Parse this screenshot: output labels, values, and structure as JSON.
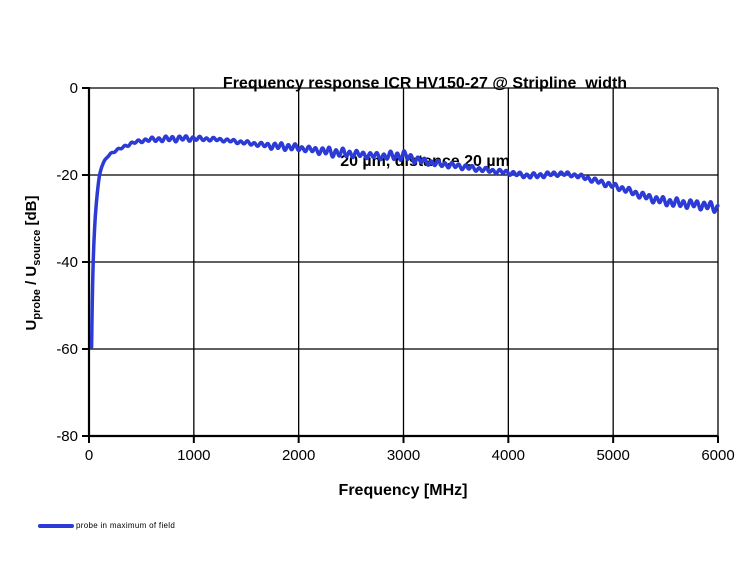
{
  "chart_data": {
    "type": "line",
    "title_line1": "Frequency response ICR HV150-27 @ Stripline  width",
    "title_line2": "20 µm, distance 20 µm",
    "xlabel": "Frequency [MHz]",
    "ylabel_parts": {
      "u1": "U",
      "sub1": "probe",
      "mid": " / U",
      "sub2": "source",
      "unit": " [dB]"
    },
    "xlim": [
      0,
      6000
    ],
    "ylim": [
      -80,
      0
    ],
    "x_ticks": [
      {
        "value": 0,
        "label": "0"
      },
      {
        "value": 1000,
        "label": "1000"
      },
      {
        "value": 2000,
        "label": "2000"
      },
      {
        "value": 3000,
        "label": "3000"
      },
      {
        "value": 4000,
        "label": "4000"
      },
      {
        "value": 5000,
        "label": "5000"
      },
      {
        "value": 6000,
        "label": "6000"
      }
    ],
    "y_ticks": [
      {
        "value": 0,
        "label": "0"
      },
      {
        "value": -20,
        "label": "-20"
      },
      {
        "value": -40,
        "label": "-40"
      },
      {
        "value": -60,
        "label": "-60"
      },
      {
        "value": -80,
        "label": "-80"
      }
    ],
    "grid": true,
    "legend_position": "bottom-left",
    "axis_color": "#000000",
    "grid_color": "#000000",
    "series": [
      {
        "name": "probe in maximum of field",
        "color": "#2c3ad6",
        "trend_points_mhz_db": [
          [
            25,
            -59.5
          ],
          [
            28,
            -54
          ],
          [
            32,
            -48
          ],
          [
            36,
            -43.5
          ],
          [
            40,
            -40
          ],
          [
            45,
            -36.5
          ],
          [
            50,
            -33.8
          ],
          [
            55,
            -31.6
          ],
          [
            60,
            -29.5
          ],
          [
            70,
            -26.5
          ],
          [
            80,
            -24
          ],
          [
            90,
            -21.8
          ],
          [
            100,
            -20.1
          ],
          [
            110,
            -19.0
          ],
          [
            120,
            -18.2
          ],
          [
            135,
            -17.4
          ],
          [
            150,
            -16.7
          ],
          [
            175,
            -15.8
          ],
          [
            200,
            -15.2
          ],
          [
            225,
            -14.8
          ],
          [
            250,
            -14.5
          ],
          [
            275,
            -14.2
          ],
          [
            300,
            -13.9
          ],
          [
            350,
            -13.3
          ],
          [
            400,
            -12.8
          ],
          [
            450,
            -12.4
          ],
          [
            500,
            -12.15
          ],
          [
            550,
            -11.95
          ],
          [
            600,
            -11.85
          ],
          [
            700,
            -11.75
          ],
          [
            800,
            -11.65
          ],
          [
            900,
            -11.6
          ],
          [
            1000,
            -11.6
          ],
          [
            1100,
            -11.7
          ],
          [
            1200,
            -11.8
          ],
          [
            1300,
            -12.0
          ],
          [
            1400,
            -12.3
          ],
          [
            1500,
            -12.6
          ],
          [
            1600,
            -12.9
          ],
          [
            1700,
            -13.2
          ],
          [
            1800,
            -13.4
          ],
          [
            1900,
            -13.5
          ],
          [
            2000,
            -13.8
          ],
          [
            2100,
            -14.1
          ],
          [
            2200,
            -14.4
          ],
          [
            2300,
            -14.7
          ],
          [
            2400,
            -14.9
          ],
          [
            2500,
            -15.1
          ],
          [
            2600,
            -15.3
          ],
          [
            2700,
            -15.5
          ],
          [
            2800,
            -15.7
          ],
          [
            2900,
            -15.6
          ],
          [
            3000,
            -15.5
          ],
          [
            3100,
            -16.3
          ],
          [
            3200,
            -16.9
          ],
          [
            3300,
            -17.3
          ],
          [
            3400,
            -17.6
          ],
          [
            3500,
            -17.9
          ],
          [
            3600,
            -18.2
          ],
          [
            3700,
            -18.6
          ],
          [
            3800,
            -18.9
          ],
          [
            3900,
            -19.2
          ],
          [
            4000,
            -19.4
          ],
          [
            4100,
            -19.9
          ],
          [
            4200,
            -20.2
          ],
          [
            4300,
            -20.1
          ],
          [
            4400,
            -19.8
          ],
          [
            4500,
            -19.7
          ],
          [
            4600,
            -19.9
          ],
          [
            4700,
            -20.4
          ],
          [
            4800,
            -21.1
          ],
          [
            4900,
            -21.8
          ],
          [
            5000,
            -22.5
          ],
          [
            5100,
            -23.2
          ],
          [
            5200,
            -24.1
          ],
          [
            5300,
            -24.9
          ],
          [
            5400,
            -25.6
          ],
          [
            5500,
            -26.1
          ],
          [
            5600,
            -26.4
          ],
          [
            5700,
            -26.6
          ],
          [
            5800,
            -26.8
          ],
          [
            5900,
            -27.1
          ],
          [
            6000,
            -27.7
          ]
        ],
        "ripple": {
          "period_mhz": 65,
          "secondary_period_mhz": 152,
          "secondary_ratio": 0.35,
          "amplitude_envelope_mhz_db": [
            [
              25,
              0.05
            ],
            [
              150,
              0.1
            ],
            [
              300,
              0.2
            ],
            [
              500,
              0.3
            ],
            [
              650,
              0.45
            ],
            [
              800,
              0.55
            ],
            [
              950,
              0.5
            ],
            [
              1100,
              0.35
            ],
            [
              1300,
              0.3
            ],
            [
              1500,
              0.35
            ],
            [
              1650,
              0.4
            ],
            [
              1800,
              0.7
            ],
            [
              1950,
              0.65
            ],
            [
              2050,
              0.5
            ],
            [
              2200,
              0.65
            ],
            [
              2300,
              0.9
            ],
            [
              2450,
              0.8
            ],
            [
              2600,
              0.6
            ],
            [
              2750,
              0.6
            ],
            [
              2900,
              0.85
            ],
            [
              3000,
              0.9
            ],
            [
              3100,
              0.7
            ],
            [
              3250,
              0.55
            ],
            [
              3400,
              0.55
            ],
            [
              3550,
              0.5
            ],
            [
              3700,
              0.45
            ],
            [
              3900,
              0.4
            ],
            [
              4100,
              0.45
            ],
            [
              4300,
              0.5
            ],
            [
              4500,
              0.4
            ],
            [
              4700,
              0.4
            ],
            [
              4900,
              0.5
            ],
            [
              5100,
              0.55
            ],
            [
              5300,
              0.65
            ],
            [
              5450,
              0.75
            ],
            [
              5600,
              0.85
            ],
            [
              5750,
              0.8
            ],
            [
              5900,
              0.85
            ],
            [
              6000,
              0.95
            ]
          ]
        }
      }
    ],
    "legend": [
      {
        "label": "probe in maximum of field"
      }
    ]
  }
}
